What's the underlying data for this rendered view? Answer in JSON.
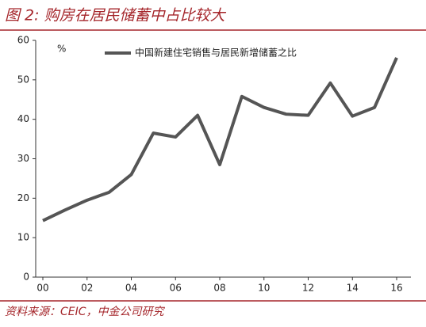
{
  "chart_data": {
    "type": "line",
    "title": "图 2: 购房在居民储蓄中占比较大",
    "y_unit": "%",
    "source": "资料来源：CEIC，中金公司研究",
    "categories": [
      "00",
      null,
      "02",
      null,
      "04",
      null,
      "06",
      null,
      "08",
      null,
      "10",
      null,
      "12",
      null,
      "14",
      null,
      "16"
    ],
    "series": [
      {
        "name": "中国新建住宅销售与居民新增储蓄之比",
        "color": "#555555",
        "values": [
          14.3,
          17,
          19.5,
          21.5,
          26,
          36.5,
          35.5,
          41,
          28.5,
          45.8,
          43,
          41.3,
          41,
          49.2,
          40.8,
          43,
          55.6
        ]
      }
    ],
    "ylim": [
      0,
      60
    ],
    "yticks": [
      0,
      10,
      20,
      30,
      40,
      50,
      60
    ],
    "grid": false,
    "legend": "top"
  }
}
